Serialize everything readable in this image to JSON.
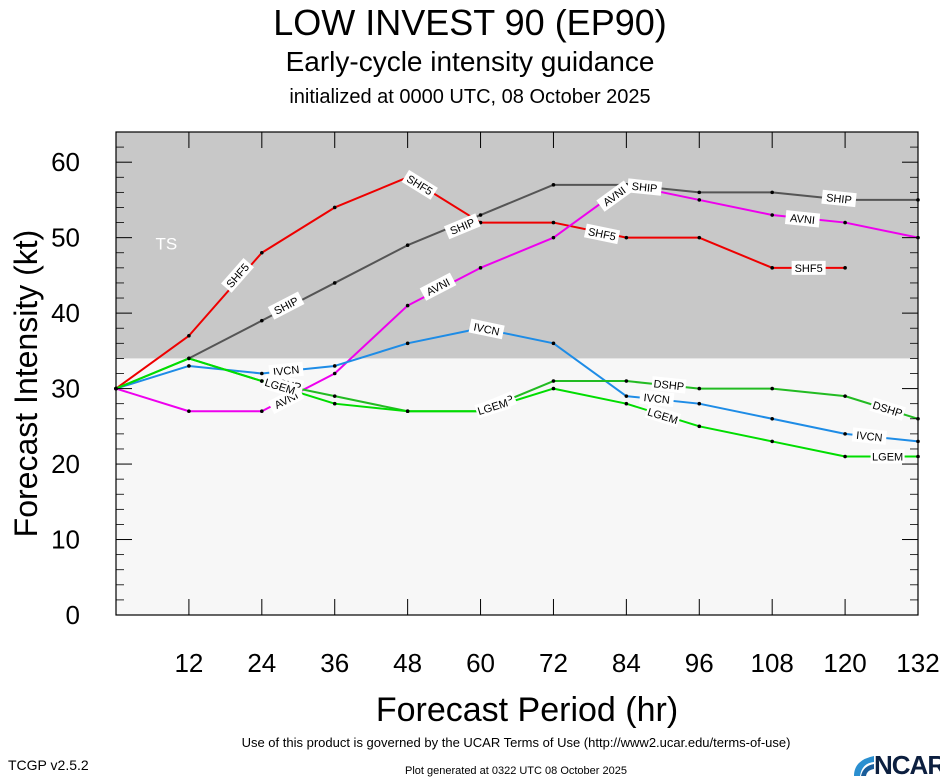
{
  "header": {
    "title": "LOW INVEST 90 (EP90)",
    "subtitle": "Early-cycle intensity guidance",
    "initialized": "initialized at 0000 UTC, 08 October 2025"
  },
  "footer": {
    "terms": "Use of this product is governed by the UCAR Terms of Use (http://www2.ucar.edu/terms-of-use)",
    "version": "TCGP v2.5.2",
    "generated": "Plot generated at 0322 UTC   08 October 2025",
    "logo_text": "NCAR"
  },
  "chart_data": {
    "type": "line",
    "title": "LOW INVEST 90 (EP90)",
    "xlabel": "Forecast Period (hr)",
    "ylabel": "Forecast Intensity (kt)",
    "xlim": [
      0,
      132
    ],
    "ylim": [
      0,
      64
    ],
    "xticks": [
      12,
      24,
      36,
      48,
      60,
      72,
      84,
      96,
      108,
      120,
      132
    ],
    "yticks": [
      0,
      10,
      20,
      30,
      40,
      50,
      60
    ],
    "region_label": "TS",
    "ts_threshold": 34,
    "colors": {
      "ts_band": "#c8c8c8",
      "background": "#f7f7f7"
    },
    "series": [
      {
        "name": "SHF5",
        "color": "#ee0000",
        "x": [
          0,
          12,
          24,
          36,
          48,
          60,
          72,
          84,
          96,
          108,
          120
        ],
        "y": [
          30,
          37,
          48,
          54,
          58,
          52,
          52,
          50,
          50,
          46,
          46
        ]
      },
      {
        "name": "SHIP",
        "color": "#555555",
        "x": [
          12,
          24,
          36,
          48,
          60,
          72,
          84,
          96,
          108,
          120,
          132
        ],
        "y": [
          34,
          39,
          44,
          49,
          53,
          57,
          57,
          56,
          56,
          55,
          55
        ]
      },
      {
        "name": "AVNI",
        "color": "#ee00ee",
        "x": [
          0,
          12,
          24,
          36,
          48,
          60,
          72,
          84,
          96,
          108,
          120,
          132
        ],
        "y": [
          30,
          27,
          27,
          32,
          41,
          46,
          50,
          57,
          55,
          53,
          52,
          50
        ]
      },
      {
        "name": "IVCN",
        "color": "#1e8ce6",
        "x": [
          0,
          12,
          24,
          36,
          48,
          60,
          72,
          84,
          96,
          108,
          120,
          132
        ],
        "y": [
          30,
          33,
          32,
          33,
          36,
          38,
          36,
          29,
          28,
          26,
          24,
          23
        ]
      },
      {
        "name": "DSHP",
        "color": "#22bb22",
        "x": [
          0,
          12,
          24,
          36,
          48,
          60,
          72,
          84,
          96,
          108,
          120,
          132
        ],
        "y": [
          30,
          34,
          31,
          29,
          27,
          27,
          31,
          31,
          30,
          30,
          29,
          26
        ]
      },
      {
        "name": "LGEM",
        "color": "#00dd00",
        "x": [
          0,
          12,
          24,
          36,
          48,
          60,
          72,
          84,
          96,
          108,
          120,
          132
        ],
        "y": [
          30,
          34,
          31,
          28,
          27,
          27,
          30,
          28,
          25,
          23,
          21,
          21
        ]
      }
    ],
    "labels": [
      {
        "series": "SHF5",
        "x": 20,
        "y": 45,
        "text": "SHF5"
      },
      {
        "series": "SHF5",
        "x": 50,
        "y": 57,
        "text": "SHF5"
      },
      {
        "series": "SHF5",
        "x": 80,
        "y": 50.5,
        "text": "SHF5"
      },
      {
        "series": "SHF5",
        "x": 114,
        "y": 46,
        "text": "SHF5"
      },
      {
        "series": "SHIP",
        "x": 28,
        "y": 41,
        "text": "SHIP"
      },
      {
        "series": "SHIP",
        "x": 57,
        "y": 51.5,
        "text": "SHIP"
      },
      {
        "series": "SHIP",
        "x": 87,
        "y": 56.7,
        "text": "SHIP"
      },
      {
        "series": "SHIP",
        "x": 119,
        "y": 55.2,
        "text": "SHIP"
      },
      {
        "series": "AVNI",
        "x": 28,
        "y": 28.5,
        "text": "AVNI"
      },
      {
        "series": "AVNI",
        "x": 53,
        "y": 43.5,
        "text": "AVNI"
      },
      {
        "series": "AVNI",
        "x": 82,
        "y": 55.5,
        "text": "AVNI"
      },
      {
        "series": "AVNI",
        "x": 113,
        "y": 52.5,
        "text": "AVNI"
      },
      {
        "series": "IVCN",
        "x": 28,
        "y": 32.4,
        "text": "IVCN"
      },
      {
        "series": "IVCN",
        "x": 61,
        "y": 37.9,
        "text": "IVCN"
      },
      {
        "series": "IVCN",
        "x": 89,
        "y": 28.7,
        "text": "IVCN"
      },
      {
        "series": "IVCN",
        "x": 124,
        "y": 23.7,
        "text": "IVCN"
      },
      {
        "series": "DSHP",
        "x": 28,
        "y": 30.6,
        "text": "DSHP"
      },
      {
        "series": "DSHP",
        "x": 63,
        "y": 28,
        "text": "DSHP"
      },
      {
        "series": "DSHP",
        "x": 91,
        "y": 30.5,
        "text": "DSHP"
      },
      {
        "series": "DSHP",
        "x": 127,
        "y": 27.3,
        "text": "DSHP"
      },
      {
        "series": "LGEM",
        "x": 27,
        "y": 30.3,
        "text": "LGEM"
      },
      {
        "series": "LGEM",
        "x": 62,
        "y": 27.6,
        "text": "LGEM"
      },
      {
        "series": "LGEM",
        "x": 90,
        "y": 26.4,
        "text": "LGEM"
      },
      {
        "series": "LGEM",
        "x": 127,
        "y": 21,
        "text": "LGEM"
      }
    ]
  }
}
